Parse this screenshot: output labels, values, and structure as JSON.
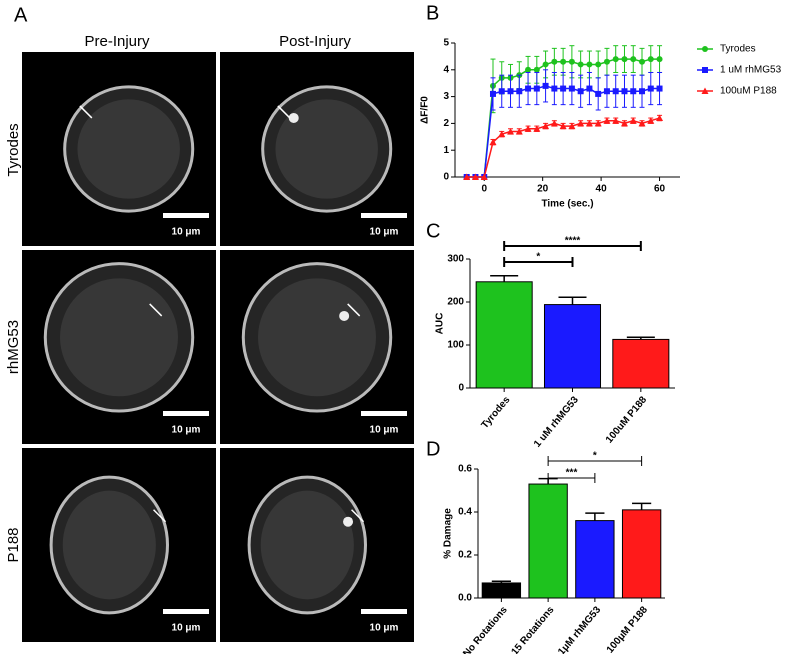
{
  "panel_a": {
    "label": "A",
    "columns": [
      "Pre-Injury",
      "Post-Injury"
    ],
    "rows": [
      "Tyrodes",
      "rhMG53",
      "P188"
    ],
    "scale_bar": "10 μm"
  },
  "chart_data": [
    {
      "type": "line",
      "label": "B",
      "x_label": "Time (sec.)",
      "y_label": "ΔF/F0",
      "x": [
        -6,
        -3,
        0,
        3,
        6,
        9,
        12,
        15,
        18,
        21,
        24,
        27,
        30,
        33,
        36,
        39,
        42,
        45,
        48,
        51,
        54,
        57,
        60
      ],
      "xlim": [
        -10,
        67
      ],
      "ylim": [
        0,
        5
      ],
      "xticks": [
        0,
        20,
        40,
        60
      ],
      "yticks": [
        0,
        1,
        2,
        3,
        4,
        5
      ],
      "legend": "right",
      "series": [
        {
          "name": "Tyrodes",
          "color": "#1ec21e",
          "marker": "circle",
          "values": [
            0,
            0,
            0,
            3.4,
            3.7,
            3.7,
            3.8,
            4.0,
            4.0,
            4.2,
            4.3,
            4.3,
            4.3,
            4.2,
            4.2,
            4.2,
            4.3,
            4.4,
            4.4,
            4.4,
            4.3,
            4.4,
            4.4
          ],
          "errors": [
            0,
            0,
            0,
            1.0,
            0.6,
            0.5,
            0.5,
            0.5,
            0.5,
            0.5,
            0.5,
            0.5,
            0.6,
            0.5,
            0.5,
            0.5,
            0.5,
            0.5,
            0.5,
            0.5,
            0.5,
            0.5,
            0.5
          ]
        },
        {
          "name": "1 uM rhMG53",
          "color": "#1a1aff",
          "marker": "square",
          "values": [
            0,
            0,
            0,
            3.1,
            3.2,
            3.2,
            3.2,
            3.3,
            3.3,
            3.4,
            3.3,
            3.3,
            3.3,
            3.2,
            3.3,
            3.1,
            3.2,
            3.2,
            3.2,
            3.2,
            3.2,
            3.3,
            3.3
          ],
          "errors": [
            0,
            0,
            0,
            0.6,
            0.6,
            0.6,
            0.6,
            0.6,
            0.6,
            0.6,
            0.6,
            0.6,
            0.6,
            0.6,
            0.6,
            0.6,
            0.6,
            0.6,
            0.6,
            0.6,
            0.6,
            0.6,
            0.6
          ]
        },
        {
          "name": "100uM P188",
          "color": "#ff1a1a",
          "marker": "triangle",
          "values": [
            0,
            0,
            0,
            1.3,
            1.6,
            1.7,
            1.7,
            1.8,
            1.8,
            1.9,
            2.0,
            1.9,
            1.9,
            2.0,
            2.0,
            2.0,
            2.1,
            2.1,
            2.0,
            2.1,
            2.0,
            2.1,
            2.2
          ],
          "errors": [
            0,
            0,
            0,
            0.1,
            0.1,
            0.1,
            0.1,
            0.1,
            0.1,
            0.1,
            0.1,
            0.1,
            0.1,
            0.1,
            0.1,
            0.1,
            0.1,
            0.1,
            0.1,
            0.1,
            0.1,
            0.1,
            0.1
          ]
        }
      ]
    },
    {
      "type": "bar",
      "label": "C",
      "y_label": "AUC",
      "categories": [
        "Tyrodes",
        "1 uM rhMG53",
        "100uM P188"
      ],
      "values": [
        247,
        194,
        113
      ],
      "errors": [
        14,
        17,
        5
      ],
      "colors": [
        "#1ec21e",
        "#1a1aff",
        "#ff1a1a"
      ],
      "ylim": [
        0,
        300
      ],
      "yticks": [
        0,
        100,
        200,
        300
      ],
      "annotations": [
        "*",
        "****"
      ]
    },
    {
      "type": "bar",
      "label": "D",
      "y_label": "% Damage",
      "categories": [
        "No Rotations",
        "15 Rotations",
        "1μM rhMG53",
        "100μM P188"
      ],
      "values": [
        0.07,
        0.53,
        0.36,
        0.41
      ],
      "errors": [
        0.008,
        0.025,
        0.035,
        0.03
      ],
      "colors": [
        "#000000",
        "#1ec21e",
        "#1a1aff",
        "#ff1a1a"
      ],
      "ylim": [
        0,
        0.6
      ],
      "yticks": [
        {
          "value": 0,
          "label": "0.0"
        },
        0.2,
        0.4,
        0.6
      ],
      "annotations": [
        "***",
        "*"
      ]
    }
  ]
}
